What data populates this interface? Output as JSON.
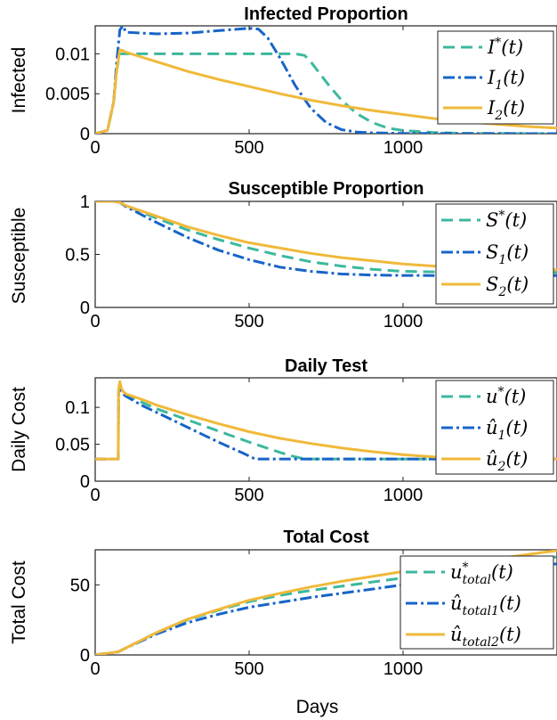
{
  "chart_data": [
    {
      "type": "line",
      "title": "Infected Proportion",
      "ylabel": "Infected",
      "xlim": [
        0,
        1500
      ],
      "ylim": [
        0,
        0.0135
      ],
      "xticks": [
        0,
        500,
        1000
      ],
      "xtick_labels": [
        "0",
        "500",
        "1000"
      ],
      "yticks": [
        0,
        0.005,
        0.01
      ],
      "ytick_labels": [
        "0",
        "0.005",
        "0.01"
      ],
      "legend": "top-right",
      "series": [
        {
          "name": "I*(t)",
          "label": {
            "base": "I",
            "sup": "*",
            "sub": "",
            "arg": "(t)"
          },
          "color": "#3cb89e",
          "dash": "dash",
          "x": [
            0,
            40,
            60,
            70,
            80,
            90,
            100,
            200,
            400,
            600,
            650,
            680,
            700,
            730,
            760,
            800,
            850,
            900,
            950,
            1000,
            1100,
            1200,
            1500
          ],
          "y": [
            0,
            0.0004,
            0.004,
            0.008,
            0.01,
            0.01,
            0.01,
            0.01,
            0.01,
            0.01,
            0.01,
            0.0098,
            0.009,
            0.0075,
            0.006,
            0.0042,
            0.0025,
            0.0014,
            0.0007,
            0.0004,
            0.00015,
            5e-05,
            0
          ]
        },
        {
          "name": "I1(t)",
          "label": {
            "base": "I",
            "sup": "",
            "sub": "1",
            "arg": "(t)"
          },
          "color": "#1764c8",
          "dash": "dashdot",
          "x": [
            0,
            40,
            60,
            70,
            80,
            90,
            100,
            150,
            200,
            300,
            400,
            500,
            530,
            560,
            600,
            650,
            700,
            750,
            800,
            850,
            900,
            1000,
            1500
          ],
          "y": [
            0,
            0.0004,
            0.004,
            0.009,
            0.013,
            0.0135,
            0.0127,
            0.0126,
            0.0125,
            0.0126,
            0.0129,
            0.0132,
            0.0131,
            0.012,
            0.0095,
            0.006,
            0.0032,
            0.0014,
            0.0005,
            0.0002,
            0.0001,
            3e-05,
            0
          ]
        },
        {
          "name": "I2(t)",
          "label": {
            "base": "I",
            "sup": "",
            "sub": "2",
            "arg": "(t)"
          },
          "color": "#f0b93a",
          "dash": "solid",
          "x": [
            0,
            40,
            60,
            70,
            80,
            90,
            100,
            150,
            200,
            300,
            400,
            500,
            600,
            700,
            800,
            900,
            1000,
            1100,
            1200,
            1300,
            1400,
            1500
          ],
          "y": [
            0,
            0.0004,
            0.004,
            0.008,
            0.0105,
            0.0104,
            0.0102,
            0.0096,
            0.009,
            0.0078,
            0.0068,
            0.0059,
            0.005,
            0.0042,
            0.0035,
            0.0029,
            0.0024,
            0.0019,
            0.0015,
            0.0012,
            0.0009,
            0.0007
          ]
        }
      ]
    },
    {
      "type": "line",
      "title": "Susceptible Proportion",
      "ylabel": "Susceptible",
      "xlim": [
        0,
        1500
      ],
      "ylim": [
        0,
        1
      ],
      "xticks": [
        0,
        500,
        1000
      ],
      "xtick_labels": [
        "0",
        "500",
        "1000"
      ],
      "yticks": [
        0,
        0.5,
        1
      ],
      "ytick_labels": [
        "0",
        "0.5",
        "1"
      ],
      "legend": "top-right",
      "series": [
        {
          "name": "S*(t)",
          "label": {
            "base": "S",
            "sup": "*",
            "sub": "",
            "arg": "(t)"
          },
          "color": "#3cb89e",
          "dash": "dash",
          "x": [
            0,
            60,
            80,
            100,
            200,
            300,
            400,
            500,
            600,
            700,
            800,
            900,
            1000,
            1100,
            1200,
            1500
          ],
          "y": [
            1,
            1,
            0.99,
            0.96,
            0.84,
            0.73,
            0.64,
            0.56,
            0.49,
            0.43,
            0.39,
            0.36,
            0.34,
            0.335,
            0.332,
            0.33
          ]
        },
        {
          "name": "S1(t)",
          "label": {
            "base": "S",
            "sup": "",
            "sub": "1",
            "arg": "(t)"
          },
          "color": "#1764c8",
          "dash": "dashdot",
          "x": [
            0,
            60,
            80,
            100,
            200,
            300,
            400,
            500,
            600,
            700,
            800,
            900,
            1000,
            1200,
            1500
          ],
          "y": [
            1,
            1,
            0.99,
            0.95,
            0.8,
            0.66,
            0.54,
            0.45,
            0.38,
            0.34,
            0.315,
            0.305,
            0.302,
            0.3,
            0.3
          ]
        },
        {
          "name": "S2(t)",
          "label": {
            "base": "S",
            "sup": "",
            "sub": "2",
            "arg": "(t)"
          },
          "color": "#f0b93a",
          "dash": "solid",
          "x": [
            0,
            60,
            80,
            100,
            200,
            300,
            400,
            500,
            600,
            700,
            800,
            900,
            1000,
            1100,
            1200,
            1300,
            1400,
            1500
          ],
          "y": [
            1,
            1,
            0.99,
            0.96,
            0.86,
            0.76,
            0.68,
            0.61,
            0.56,
            0.51,
            0.47,
            0.44,
            0.41,
            0.39,
            0.375,
            0.365,
            0.36,
            0.355
          ]
        }
      ]
    },
    {
      "type": "line",
      "title": "Daily Test",
      "ylabel": "Daily Cost",
      "xlim": [
        0,
        1500
      ],
      "ylim": [
        0,
        0.14
      ],
      "xticks": [
        0,
        500,
        1000
      ],
      "xtick_labels": [
        "0",
        "500",
        "1000"
      ],
      "yticks": [
        0,
        0.05,
        0.1
      ],
      "ytick_labels": [
        "0",
        "0.05",
        "0.1"
      ],
      "legend": "top-right",
      "series": [
        {
          "name": "u*(t)",
          "label": {
            "base": "u",
            "sup": "*",
            "sub": "",
            "arg": "(t)"
          },
          "color": "#3cb89e",
          "dash": "dash",
          "x": [
            0,
            75,
            76,
            80,
            85,
            90,
            100,
            150,
            200,
            300,
            400,
            500,
            550,
            600,
            640,
            680,
            1500
          ],
          "y": [
            0.03,
            0.03,
            0.12,
            0.13,
            0.125,
            0.12,
            0.117,
            0.107,
            0.098,
            0.083,
            0.068,
            0.053,
            0.046,
            0.039,
            0.034,
            0.03,
            0.03
          ]
        },
        {
          "name": "û1(t)",
          "label": {
            "base": "û",
            "sup": "",
            "sub": "1",
            "arg": "(t)"
          },
          "color": "#1764c8",
          "dash": "dashdot",
          "x": [
            0,
            75,
            76,
            80,
            85,
            90,
            100,
            150,
            200,
            300,
            400,
            480,
            520,
            1500
          ],
          "y": [
            0.03,
            0.03,
            0.12,
            0.13,
            0.122,
            0.118,
            0.115,
            0.103,
            0.093,
            0.073,
            0.053,
            0.038,
            0.03,
            0.03
          ]
        },
        {
          "name": "û2(t)",
          "label": {
            "base": "û",
            "sup": "",
            "sub": "2",
            "arg": "(t)"
          },
          "color": "#f0b93a",
          "dash": "solid",
          "x": [
            0,
            75,
            76,
            80,
            85,
            90,
            100,
            150,
            200,
            300,
            400,
            500,
            600,
            700,
            800,
            900,
            1000,
            1100,
            1200,
            1500
          ],
          "y": [
            0.03,
            0.03,
            0.125,
            0.135,
            0.126,
            0.122,
            0.118,
            0.111,
            0.103,
            0.09,
            0.078,
            0.067,
            0.058,
            0.051,
            0.045,
            0.04,
            0.036,
            0.033,
            0.031,
            0.03
          ]
        }
      ]
    },
    {
      "type": "line",
      "title": "Total Cost",
      "ylabel": "Total Cost",
      "xlabel": "Days",
      "xlim": [
        0,
        1500
      ],
      "ylim": [
        0,
        75
      ],
      "xticks": [
        0,
        500,
        1000
      ],
      "xtick_labels": [
        "0",
        "500",
        "1000"
      ],
      "yticks": [
        0,
        50
      ],
      "ytick_labels": [
        "0",
        "50"
      ],
      "legend": "top-right",
      "series": [
        {
          "name": "u*total(t)",
          "label": {
            "base": "u",
            "sup": "*",
            "sub": "total",
            "arg": "(t)"
          },
          "color": "#3cb89e",
          "dash": "dash",
          "x": [
            0,
            75,
            100,
            200,
            300,
            400,
            500,
            600,
            700,
            800,
            900,
            1000,
            1100,
            1200,
            1300,
            1400,
            1500
          ],
          "y": [
            0,
            2.2,
            5,
            16,
            25,
            32,
            38,
            42.5,
            46,
            49,
            52,
            55,
            58,
            61,
            64,
            67,
            70
          ]
        },
        {
          "name": "ûtotal1(t)",
          "label": {
            "base": "û",
            "sup": "",
            "sub": "total1",
            "arg": "(t)"
          },
          "color": "#1764c8",
          "dash": "dashdot",
          "x": [
            0,
            75,
            100,
            200,
            300,
            400,
            500,
            600,
            700,
            800,
            900,
            1000,
            1100,
            1200,
            1300,
            1400,
            1500
          ],
          "y": [
            0,
            2.2,
            5,
            15,
            23,
            29,
            34,
            37.5,
            41,
            44,
            47,
            50,
            53,
            56,
            59,
            62,
            65
          ]
        },
        {
          "name": "ûtotal2(t)",
          "label": {
            "base": "û",
            "sup": "",
            "sub": "total2",
            "arg": "(t)"
          },
          "color": "#f0b93a",
          "dash": "solid",
          "x": [
            0,
            75,
            100,
            200,
            300,
            400,
            500,
            600,
            700,
            800,
            900,
            1000,
            1100,
            1200,
            1300,
            1400,
            1500
          ],
          "y": [
            0,
            2.2,
            5,
            16,
            25.5,
            32.5,
            39,
            44,
            48.5,
            52.5,
            56,
            59.5,
            62.5,
            65.5,
            68.5,
            71.5,
            74.5
          ]
        }
      ]
    }
  ]
}
